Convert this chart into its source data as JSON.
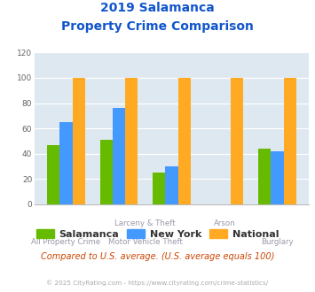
{
  "title_line1": "2019 Salamanca",
  "title_line2": "Property Crime Comparison",
  "salamanca": [
    47,
    51,
    25,
    0,
    44
  ],
  "new_york": [
    65,
    76,
    30,
    0,
    42
  ],
  "national": [
    100,
    100,
    100,
    100,
    100
  ],
  "salamanca_color": "#66bb00",
  "new_york_color": "#4499ff",
  "national_color": "#ffaa22",
  "bg_color": "#dde8f0",
  "ylim": [
    0,
    120
  ],
  "yticks": [
    0,
    20,
    40,
    60,
    80,
    100,
    120
  ],
  "title_color": "#1155cc",
  "label_top": [
    "",
    "Larceny & Theft",
    "",
    "Arson",
    ""
  ],
  "label_bottom": [
    "All Property Crime",
    "",
    "Motor Vehicle Theft",
    "",
    "Burglary"
  ],
  "legend_labels": [
    "Salamanca",
    "New York",
    "National"
  ],
  "footer_text": "Compared to U.S. average. (U.S. average equals 100)",
  "copyright_text": "© 2025 CityRating.com - https://www.cityrating.com/crime-statistics/"
}
